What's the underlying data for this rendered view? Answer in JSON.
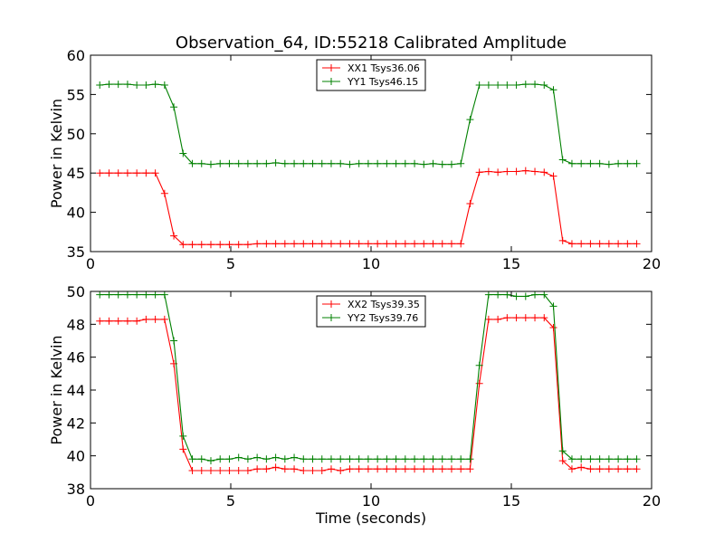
{
  "chart_data": [
    {
      "type": "line",
      "title": "Observation_64, ID:55218 Calibrated Amplitude",
      "xlabel": "",
      "ylabel": "Power in Kelvin",
      "xlim": [
        0,
        20
      ],
      "ylim": [
        35,
        60
      ],
      "xticks": [
        "0",
        "5",
        "10",
        "15",
        "20"
      ],
      "yticks": [
        "35",
        "40",
        "45",
        "50",
        "55",
        "60"
      ],
      "legend_position": "top-center",
      "series": [
        {
          "name": "XX1 Tsys36.06",
          "color": "#ff0000",
          "x": [
            0.33,
            0.66,
            0.99,
            1.32,
            1.65,
            1.98,
            2.31,
            2.64,
            2.97,
            3.3,
            3.63,
            3.96,
            4.29,
            4.62,
            4.95,
            5.28,
            5.61,
            5.94,
            6.27,
            6.6,
            6.93,
            7.26,
            7.59,
            7.92,
            8.25,
            8.58,
            8.91,
            9.24,
            9.57,
            9.9,
            10.23,
            10.56,
            10.89,
            11.22,
            11.55,
            11.88,
            12.21,
            12.54,
            12.87,
            13.2,
            13.53,
            13.86,
            14.19,
            14.52,
            14.85,
            15.18,
            15.51,
            15.84,
            16.17,
            16.5,
            16.83,
            17.16,
            17.49,
            17.82,
            18.15,
            18.48,
            18.81,
            19.14,
            19.47
          ],
          "values": [
            45.0,
            45.0,
            45.0,
            45.0,
            45.0,
            45.0,
            45.0,
            42.4,
            37.0,
            35.9,
            35.9,
            35.9,
            35.9,
            35.9,
            35.9,
            35.9,
            35.9,
            36.0,
            36.0,
            36.0,
            36.0,
            36.0,
            36.0,
            36.0,
            36.0,
            36.0,
            36.0,
            36.0,
            36.0,
            36.0,
            36.0,
            36.0,
            36.0,
            36.0,
            36.0,
            36.0,
            36.0,
            36.0,
            36.0,
            36.0,
            41.1,
            45.1,
            45.2,
            45.1,
            45.2,
            45.2,
            45.3,
            45.2,
            45.1,
            44.6,
            36.4,
            36.0,
            36.0,
            36.0,
            36.0,
            36.0,
            36.0,
            36.0,
            36.0
          ]
        },
        {
          "name": "YY1 Tsys46.15",
          "color": "#008000",
          "x": [
            0.33,
            0.66,
            0.99,
            1.32,
            1.65,
            1.98,
            2.31,
            2.64,
            2.97,
            3.3,
            3.63,
            3.96,
            4.29,
            4.62,
            4.95,
            5.28,
            5.61,
            5.94,
            6.27,
            6.6,
            6.93,
            7.26,
            7.59,
            7.92,
            8.25,
            8.58,
            8.91,
            9.24,
            9.57,
            9.9,
            10.23,
            10.56,
            10.89,
            11.22,
            11.55,
            11.88,
            12.21,
            12.54,
            12.87,
            13.2,
            13.53,
            13.86,
            14.19,
            14.52,
            14.85,
            15.18,
            15.51,
            15.84,
            16.17,
            16.5,
            16.83,
            17.16,
            17.49,
            17.82,
            18.15,
            18.48,
            18.81,
            19.14,
            19.47
          ],
          "values": [
            56.2,
            56.3,
            56.3,
            56.3,
            56.2,
            56.2,
            56.3,
            56.2,
            53.4,
            47.5,
            46.2,
            46.2,
            46.1,
            46.2,
            46.2,
            46.2,
            46.2,
            46.2,
            46.2,
            46.3,
            46.2,
            46.2,
            46.2,
            46.2,
            46.2,
            46.2,
            46.2,
            46.1,
            46.2,
            46.2,
            46.2,
            46.2,
            46.2,
            46.2,
            46.2,
            46.1,
            46.2,
            46.1,
            46.1,
            46.2,
            51.8,
            56.2,
            56.2,
            56.2,
            56.2,
            56.2,
            56.3,
            56.3,
            56.2,
            55.6,
            46.7,
            46.2,
            46.2,
            46.2,
            46.2,
            46.1,
            46.2,
            46.2,
            46.2
          ]
        }
      ]
    },
    {
      "type": "line",
      "title": "",
      "xlabel": "Time (seconds)",
      "ylabel": "Power in Kelvin",
      "xlim": [
        0,
        20
      ],
      "ylim": [
        38,
        50
      ],
      "xticks": [
        "0",
        "5",
        "10",
        "15",
        "20"
      ],
      "yticks": [
        "38",
        "40",
        "42",
        "44",
        "46",
        "48",
        "50"
      ],
      "legend_position": "top-center",
      "series": [
        {
          "name": "XX2 Tsys39.35",
          "color": "#ff0000",
          "x": [
            0.33,
            0.66,
            0.99,
            1.32,
            1.65,
            1.98,
            2.31,
            2.64,
            2.97,
            3.3,
            3.63,
            3.96,
            4.29,
            4.62,
            4.95,
            5.28,
            5.61,
            5.94,
            6.27,
            6.6,
            6.93,
            7.26,
            7.59,
            7.92,
            8.25,
            8.58,
            8.91,
            9.24,
            9.57,
            9.9,
            10.23,
            10.56,
            10.89,
            11.22,
            11.55,
            11.88,
            12.21,
            12.54,
            12.87,
            13.2,
            13.53,
            13.86,
            14.19,
            14.52,
            14.85,
            15.18,
            15.51,
            15.84,
            16.17,
            16.5,
            16.83,
            17.16,
            17.49,
            17.82,
            18.15,
            18.48,
            18.81,
            19.14,
            19.47
          ],
          "values": [
            48.2,
            48.2,
            48.2,
            48.2,
            48.2,
            48.3,
            48.3,
            48.3,
            45.6,
            40.4,
            39.1,
            39.1,
            39.1,
            39.1,
            39.1,
            39.1,
            39.1,
            39.2,
            39.2,
            39.3,
            39.2,
            39.2,
            39.1,
            39.1,
            39.1,
            39.2,
            39.1,
            39.2,
            39.2,
            39.2,
            39.2,
            39.2,
            39.2,
            39.2,
            39.2,
            39.2,
            39.2,
            39.2,
            39.2,
            39.2,
            39.2,
            44.4,
            48.3,
            48.3,
            48.4,
            48.4,
            48.4,
            48.4,
            48.4,
            47.8,
            39.7,
            39.2,
            39.3,
            39.2,
            39.2,
            39.2,
            39.2,
            39.2,
            39.2
          ]
        },
        {
          "name": "YY2 Tsys39.76",
          "color": "#008000",
          "x": [
            0.33,
            0.66,
            0.99,
            1.32,
            1.65,
            1.98,
            2.31,
            2.64,
            2.97,
            3.3,
            3.63,
            3.96,
            4.29,
            4.62,
            4.95,
            5.28,
            5.61,
            5.94,
            6.27,
            6.6,
            6.93,
            7.26,
            7.59,
            7.92,
            8.25,
            8.58,
            8.91,
            9.24,
            9.57,
            9.9,
            10.23,
            10.56,
            10.89,
            11.22,
            11.55,
            11.88,
            12.21,
            12.54,
            12.87,
            13.2,
            13.53,
            13.86,
            14.19,
            14.52,
            14.85,
            15.18,
            15.51,
            15.84,
            16.17,
            16.5,
            16.83,
            17.16,
            17.49,
            17.82,
            18.15,
            18.48,
            18.81,
            19.14,
            19.47
          ],
          "values": [
            49.8,
            49.8,
            49.8,
            49.8,
            49.8,
            49.8,
            49.8,
            49.8,
            47.0,
            41.2,
            39.8,
            39.8,
            39.7,
            39.8,
            39.8,
            39.9,
            39.8,
            39.9,
            39.8,
            39.9,
            39.8,
            39.9,
            39.8,
            39.8,
            39.8,
            39.8,
            39.8,
            39.8,
            39.8,
            39.8,
            39.8,
            39.8,
            39.8,
            39.8,
            39.8,
            39.8,
            39.8,
            39.8,
            39.8,
            39.8,
            39.8,
            45.5,
            49.8,
            49.8,
            49.8,
            49.7,
            49.7,
            49.8,
            49.8,
            49.1,
            40.3,
            39.8,
            39.8,
            39.8,
            39.8,
            39.8,
            39.8,
            39.8,
            39.8
          ]
        }
      ]
    }
  ]
}
